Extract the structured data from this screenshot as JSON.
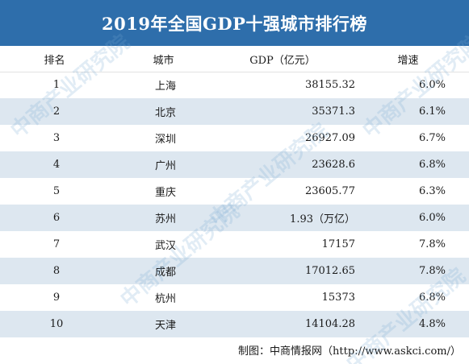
{
  "title": "2019年全国GDP十强城市排行榜",
  "headers": {
    "rank": "排名",
    "city": "城市",
    "gdp": "GDP（亿元）",
    "growth": "增速"
  },
  "rows": [
    {
      "rank": "1",
      "city": "上海",
      "gdp": "38155.32",
      "growth": "6.0%"
    },
    {
      "rank": "2",
      "city": "北京",
      "gdp": "35371.3",
      "growth": "6.1%"
    },
    {
      "rank": "3",
      "city": "深圳",
      "gdp": "26927.09",
      "growth": "6.7%"
    },
    {
      "rank": "4",
      "city": "广州",
      "gdp": "23628.6",
      "growth": "6.8%"
    },
    {
      "rank": "5",
      "city": "重庆",
      "gdp": "23605.77",
      "growth": "6.3%"
    },
    {
      "rank": "6",
      "city": "苏州",
      "gdp": "1.93（万亿）",
      "growth": "6.0%"
    },
    {
      "rank": "7",
      "city": "武汉",
      "gdp": "17157",
      "growth": "7.8%"
    },
    {
      "rank": "8",
      "city": "成都",
      "gdp": "17012.65",
      "growth": "7.8%"
    },
    {
      "rank": "9",
      "city": "杭州",
      "gdp": "15373",
      "growth": "6.8%"
    },
    {
      "rank": "10",
      "city": "天津",
      "gdp": "14104.28",
      "growth": "4.8%"
    }
  ],
  "footer": "制图：中商情报网（http://www.askci.com/）",
  "watermark": "中商产业研究院",
  "colors": {
    "title_bg": "#2e6eab",
    "alt_row_bg": "#dde7f0"
  }
}
